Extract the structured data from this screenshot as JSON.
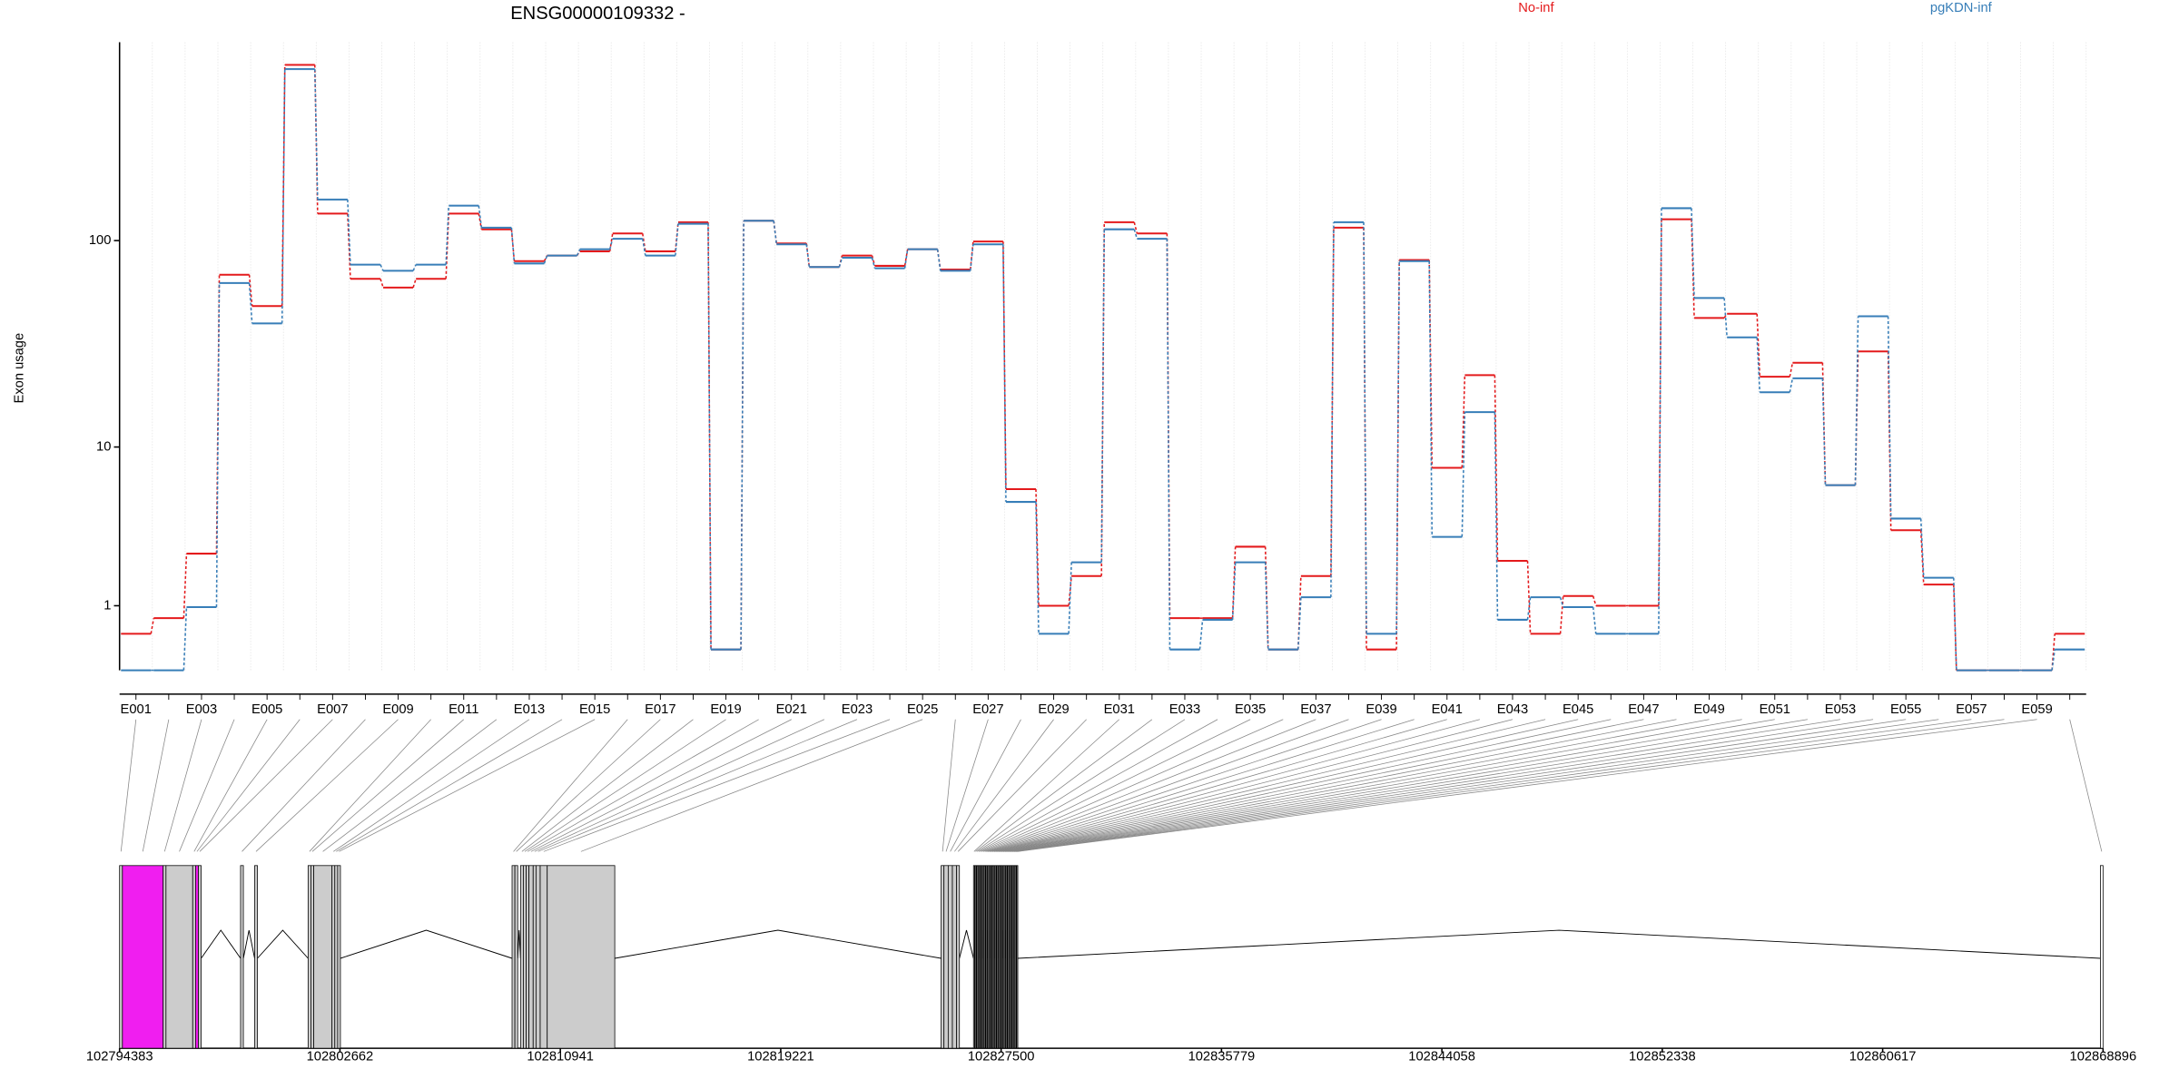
{
  "chart_data": [
    {
      "type": "step",
      "title": "ENSG00000109332 -",
      "ylabel": "Exon usage",
      "yscale": "log1p",
      "grid": true,
      "categories": [
        "E001",
        null,
        "E003",
        null,
        "E005",
        null,
        "E007",
        null,
        "E009",
        null,
        "E011",
        null,
        "E013",
        null,
        "E015",
        null,
        "E017",
        null,
        "E019",
        null,
        "E021",
        null,
        "E023",
        null,
        "E025",
        null,
        "E027",
        null,
        "E029",
        null,
        "E031",
        null,
        "E033",
        null,
        "E035",
        null,
        "E037",
        null,
        "E039",
        null,
        "E041",
        null,
        "E043",
        null,
        "E045",
        null,
        "E047",
        null,
        "E049",
        null,
        "E051",
        null,
        "E053",
        null,
        "E055",
        null,
        "E057",
        null,
        "E059",
        null
      ],
      "ylim": [
        0,
        850
      ],
      "yticks": [
        1,
        10,
        100
      ],
      "series": [
        {
          "name": "No-inf",
          "color": "#e41a1c",
          "values": [
            0.48,
            0.75,
            2.5,
            69,
            49,
            666,
            134,
            66,
            60,
            66,
            134,
            113,
            80,
            85,
            89,
            108,
            89,
            122,
            0.25,
            124,
            97,
            75,
            85,
            76,
            91,
            73,
            99,
            6.0,
            1.0,
            1.75,
            122,
            108,
            0.75,
            0.75,
            2.77,
            0.25,
            1.75,
            115,
            0.25,
            81,
            7.8,
            22.8,
            2.24,
            0.48,
            1.22,
            1.0,
            1.0,
            126,
            43,
            45,
            22.4,
            26.2,
            6.3,
            29.7,
            3.5,
            1.51,
            0,
            0,
            0,
            0.48
          ]
        },
        {
          "name": "pgKDN-inf",
          "color": "#377eb8",
          "values": [
            0,
            0,
            0.97,
            63,
            40.5,
            636,
            156,
            77,
            72,
            77,
            146,
            115,
            78,
            85,
            91,
            102,
            85,
            120,
            0.25,
            124,
            96,
            75,
            83,
            74,
            91,
            72,
            96,
            5.1,
            0.48,
            2.19,
            113,
            102,
            0.25,
            0.72,
            2.19,
            0.25,
            1.19,
            122,
            0.48,
            80,
            3.19,
            15,
            0.72,
            1.19,
            0.97,
            0.48,
            0.48,
            142,
            53.5,
            34.7,
            18.8,
            22,
            6.3,
            43.8,
            4.1,
            1.7,
            0,
            0,
            0,
            0.25
          ]
        }
      ]
    },
    {
      "type": "gene_model",
      "xlim": [
        102794383,
        102868896
      ],
      "xticks": [
        102794383,
        102802662,
        102810941,
        102819221,
        102827500,
        102835779,
        102844058,
        102852338,
        102860617,
        102868896
      ],
      "exon_starts": [
        102794383,
        102794489,
        102796021,
        102796127,
        102797131,
        102797237,
        102797343,
        102798928,
        102799457,
        102801465,
        102801571,
        102801676,
        102802363,
        102802469,
        102802575,
        102809128,
        102809234,
        102809445,
        102809551,
        102809657,
        102809762,
        102809921,
        102810027,
        102810185,
        102810449,
        102825247,
        102825353,
        102825512,
        102825670,
        102825829,
        102826463,
        102826521,
        102826579,
        102826637,
        102826695,
        102826753,
        102826811,
        102826869,
        102826927,
        102826985,
        102827043,
        102827101,
        102827159,
        102827217,
        102827275,
        102827333,
        102827391,
        102827449,
        102827507,
        102827565,
        102827623,
        102827681,
        102827739,
        102827797,
        102827855,
        102827913,
        102827971,
        102828029,
        102828087,
        102868796
      ],
      "exon_ends": [
        102794489,
        102796021,
        102796127,
        102797131,
        102797237,
        102797343,
        102797448,
        102799034,
        102799562,
        102801571,
        102801676,
        102802363,
        102802469,
        102802575,
        102802680,
        102809234,
        102809340,
        102809551,
        102809657,
        102809762,
        102809921,
        102810027,
        102810185,
        102810449,
        102812986,
        102825353,
        102825512,
        102825670,
        102825829,
        102825934,
        102826503,
        102826561,
        102826619,
        102826677,
        102826735,
        102826793,
        102826851,
        102826909,
        102826967,
        102827025,
        102827083,
        102827141,
        102827199,
        102827257,
        102827315,
        102827373,
        102827431,
        102827489,
        102827547,
        102827605,
        102827663,
        102827721,
        102827779,
        102827837,
        102827895,
        102827953,
        102828011,
        102828069,
        102828127,
        102868896
      ],
      "exon_colors": [
        "#cccccc",
        "#f01ef0",
        "#cccccc",
        "#cccccc",
        "#cccccc",
        "#f01ef0",
        "#cccccc",
        "#cccccc",
        "#cccccc",
        "#cccccc",
        "#cccccc",
        "#cccccc",
        "#cccccc",
        "#cccccc",
        "#cccccc",
        "#cccccc",
        "#cccccc",
        "#cccccc",
        "#cccccc",
        "#cccccc",
        "#cccccc",
        "#cccccc",
        "#cccccc",
        "#cccccc",
        "#cccccc",
        "#cccccc",
        "#cccccc",
        "#cccccc",
        "#cccccc",
        "#cccccc",
        "#cccccc",
        "#cccccc",
        "#cccccc",
        "#cccccc",
        "#cccccc",
        "#cccccc",
        "#cccccc",
        "#cccccc",
        "#cccccc",
        "#cccccc",
        "#cccccc",
        "#cccccc",
        "#cccccc",
        "#cccccc",
        "#cccccc",
        "#cccccc",
        "#cccccc",
        "#cccccc",
        "#cccccc",
        "#cccccc",
        "#cccccc",
        "#cccccc",
        "#cccccc",
        "#cccccc",
        "#cccccc",
        "#cccccc",
        "#cccccc",
        "#cccccc",
        "#cccccc",
        "#ffffff"
      ]
    }
  ]
}
